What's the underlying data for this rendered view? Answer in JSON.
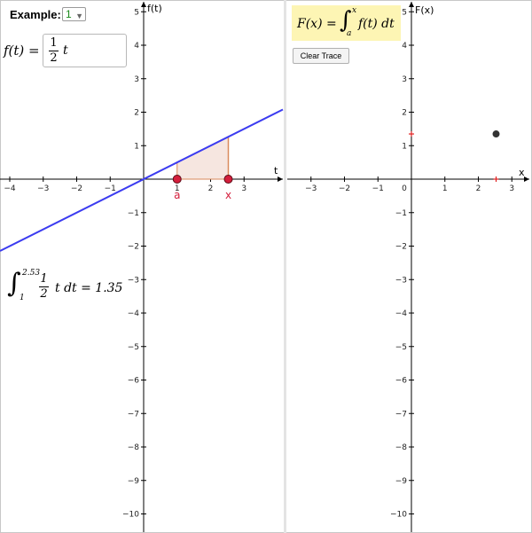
{
  "header": {
    "example_label": "Example:",
    "example_value": "1",
    "dropdown_icon": "chevron-down-icon"
  },
  "function_input": {
    "label": "f(t) =",
    "numerator": "1",
    "denominator": "2",
    "variable": "t"
  },
  "integral_result": {
    "lower": "1",
    "upper": "2.53",
    "numerator": "1",
    "denominator": "2",
    "body": "t dt = 1.35"
  },
  "right_panel": {
    "formula_lhs": "F(x) =",
    "formula_upper": "x",
    "formula_lower": "a",
    "formula_body": "f(t) dt",
    "clear_trace_label": "Clear Trace"
  },
  "left_graph": {
    "x_axis_label": "t",
    "y_axis_label": "f(t)",
    "x_ticks": [
      "−4",
      "−3",
      "−2",
      "−1",
      "1",
      "2",
      "3"
    ],
    "y_ticks": [
      "5",
      "4",
      "3",
      "2",
      "1",
      "−1",
      "−2",
      "−3",
      "−4",
      "−5",
      "−6",
      "−7",
      "−8",
      "−9",
      "−10"
    ],
    "point_a_label": "a",
    "point_x_label": "x",
    "a_value": 1,
    "x_value": 2.53,
    "slope": 0.5,
    "line_color": "#3b3bf0",
    "point_color": "#d41e3c",
    "shade_color": "#f6e6e0",
    "shade_edge_color": "#d98a5c"
  },
  "right_graph": {
    "x_axis_label": "x",
    "y_axis_label": "F(x)",
    "x_ticks": [
      "−3",
      "−2",
      "−1",
      "0",
      "1",
      "2",
      "3"
    ],
    "y_ticks": [
      "5",
      "4",
      "3",
      "2",
      "1",
      "−1",
      "−2",
      "−3",
      "−4",
      "−5",
      "−6",
      "−7",
      "−8",
      "−9",
      "−10"
    ],
    "trace_point": [
      2.53,
      1.35
    ],
    "trace_point_color": "#333333",
    "marker_color": "#e02020"
  }
}
